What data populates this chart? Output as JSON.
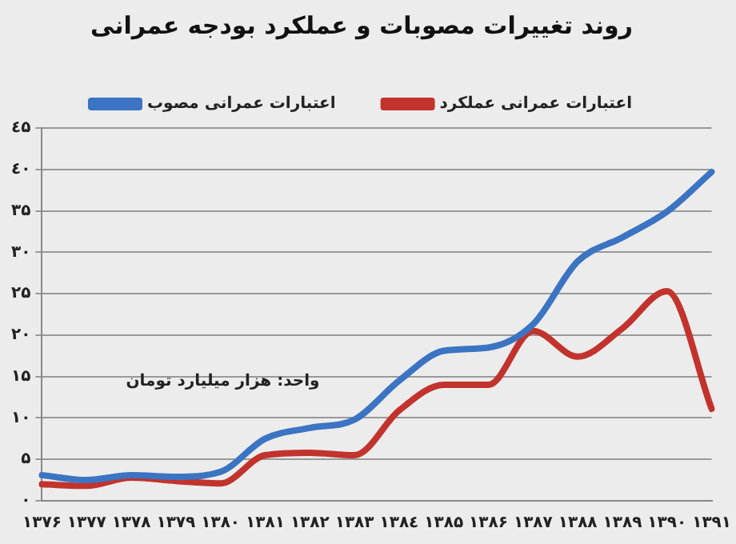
{
  "chart_data": {
    "type": "line",
    "title": "روند تغییرات مصوبات و عملکرد بودجه عمرانی",
    "categories": [
      "۱۳۷۶",
      "۱۳۷۷",
      "۱۳۷۸",
      "۱۳۷۹",
      "۱۳۸۰",
      "۱۳۸۱",
      "۱۳۸۲",
      "۱۳۸۳",
      "۱۳۸٤",
      "۱۳۸۵",
      "۱۳۸۶",
      "۱۳۸۷",
      "۱۳۸۸",
      "۱۳۸۹",
      "۱۳۹۰",
      "۱۳۹۱"
    ],
    "series": [
      {
        "name": "اعتبارات عمرانی مصوب",
        "color": "#3b74c2",
        "values": [
          3.1,
          2.5,
          3.1,
          2.9,
          3.5,
          7.5,
          8.8,
          9.8,
          14.5,
          18.1,
          18.5,
          21.3,
          28.9,
          31.8,
          34.9,
          39.7
        ]
      },
      {
        "name": "اعتبارات عمرانی عملکرد",
        "color": "#c2332d",
        "values": [
          2.0,
          1.8,
          2.8,
          2.4,
          2.1,
          5.5,
          5.8,
          5.5,
          10.9,
          14.0,
          14.0,
          20.5,
          17.4,
          20.8,
          25.3,
          11.1
        ]
      }
    ],
    "ylim": [
      0,
      45
    ],
    "yticks": [
      {
        "value": 0,
        "label": "۰"
      },
      {
        "value": 5,
        "label": "۵"
      },
      {
        "value": 10,
        "label": "۱۰"
      },
      {
        "value": 15,
        "label": "۱۵"
      },
      {
        "value": 20,
        "label": "۲۰"
      },
      {
        "value": 25,
        "label": "۲۵"
      },
      {
        "value": 30,
        "label": "۳۰"
      },
      {
        "value": 35,
        "label": "۳۵"
      },
      {
        "value": 40,
        "label": "٤۰"
      },
      {
        "value": 45,
        "label": "٤۵"
      }
    ],
    "grid": "y",
    "legend": "top",
    "marker": "none",
    "line_style": "solid",
    "annotations": [
      "واحد: هزار میلیارد تومان"
    ]
  }
}
